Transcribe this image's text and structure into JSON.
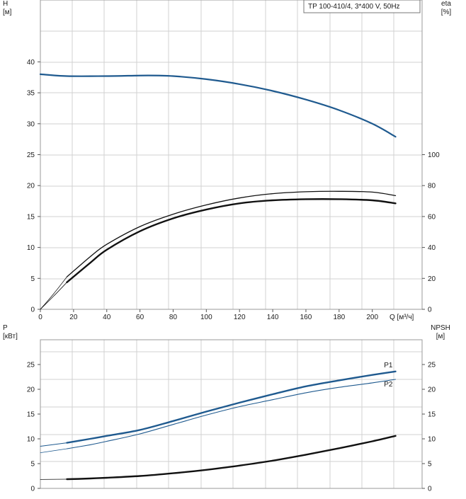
{
  "colors": {
    "blue": "#1f5a8f",
    "black": "#111111",
    "grid": "#d2d2d2"
  },
  "chart_data": [
    {
      "type": "line",
      "title": "TP 100-410/4, 3*400 V, 50Hz",
      "xlabel": "Q [м³/ч]",
      "xlim": [
        0,
        230
      ],
      "xticks": [
        0,
        20,
        40,
        60,
        80,
        100,
        120,
        140,
        160,
        180,
        200
      ],
      "ylabel": "H",
      "ylabel_unit": "[м]",
      "ylim": [
        0,
        50
      ],
      "yticks": [
        0,
        5,
        10,
        15,
        20,
        25,
        30,
        35,
        40
      ],
      "y2label": "eta",
      "y2label_unit": "[%]",
      "y2lim": [
        0,
        200
      ],
      "y2ticks": [
        0,
        20,
        40,
        60,
        80,
        100
      ],
      "grid": true,
      "series": [
        {
          "axis": "left",
          "color": "#1f5a8f",
          "width": 2.2,
          "x": [
            0,
            16,
            40,
            65,
            80,
            100,
            120,
            140,
            160,
            180,
            200,
            214
          ],
          "y": [
            38,
            37.7,
            37.7,
            37.8,
            37.7,
            37.2,
            36.4,
            35.3,
            33.9,
            32.2,
            30.0,
            27.9
          ]
        },
        {
          "axis": "left",
          "color": "#1f5a8f",
          "width": 1.0,
          "x": [
            0,
            16
          ],
          "y": [
            38,
            37.7
          ]
        },
        {
          "axis": "right",
          "color": "#111111",
          "width": 1.3,
          "x": [
            16,
            30,
            40,
            60,
            80,
            100,
            120,
            140,
            160,
            180,
            200,
            214
          ],
          "y": [
            21,
            34,
            42,
            53.5,
            61.5,
            67.5,
            72,
            74.8,
            76,
            76.3,
            75.8,
            73.5
          ]
        },
        {
          "axis": "right",
          "color": "#111111",
          "width": 0.8,
          "x": [
            0,
            8,
            16
          ],
          "y": [
            0,
            10,
            21
          ]
        },
        {
          "axis": "right",
          "color": "#111111",
          "width": 2.4,
          "x": [
            16,
            30,
            40,
            60,
            80,
            100,
            120,
            140,
            160,
            180,
            200,
            214
          ],
          "y": [
            17.5,
            30,
            38.5,
            50.5,
            58.8,
            64.5,
            68.5,
            70.5,
            71.2,
            71.2,
            70.5,
            68.5
          ]
        },
        {
          "axis": "right",
          "color": "#111111",
          "width": 0.8,
          "x": [
            0,
            8,
            16
          ],
          "y": [
            0,
            8.5,
            17.5
          ]
        }
      ]
    },
    {
      "type": "line",
      "xlim": [
        0,
        230
      ],
      "xticks": [],
      "ylabel": "P",
      "ylabel_unit": "[кВт]",
      "ylim": [
        0,
        30
      ],
      "yticks": [
        0,
        5,
        10,
        15,
        20,
        25
      ],
      "y2label": "NPSH",
      "y2label_unit": "[м]",
      "y2lim": [
        0,
        30
      ],
      "y2ticks": [
        0,
        5,
        10,
        15,
        20,
        25
      ],
      "grid": true,
      "series": [
        {
          "name": "P1",
          "axis": "left",
          "color": "#1f5a8f",
          "width": 2.4,
          "x": [
            16,
            30,
            40,
            60,
            80,
            100,
            120,
            140,
            160,
            180,
            200,
            214
          ],
          "y": [
            9.2,
            10.0,
            10.6,
            11.8,
            13.6,
            15.5,
            17.3,
            19.0,
            20.6,
            21.8,
            22.9,
            23.6
          ]
        },
        {
          "axis": "left",
          "color": "#1f5a8f",
          "width": 1.0,
          "x": [
            0,
            16
          ],
          "y": [
            8.5,
            9.2
          ]
        },
        {
          "name": "P2",
          "axis": "left",
          "color": "#1f5a8f",
          "width": 1.1,
          "x": [
            16,
            30,
            40,
            60,
            80,
            100,
            120,
            140,
            160,
            180,
            200,
            214
          ],
          "y": [
            8.0,
            8.8,
            9.5,
            11.0,
            12.9,
            14.8,
            16.5,
            17.9,
            19.3,
            20.4,
            21.3,
            22.0
          ]
        },
        {
          "axis": "left",
          "color": "#1f5a8f",
          "width": 0.8,
          "x": [
            0,
            16
          ],
          "y": [
            7.2,
            8.0
          ]
        },
        {
          "axis": "right",
          "color": "#111111",
          "width": 2.4,
          "x": [
            16,
            30,
            40,
            60,
            80,
            100,
            120,
            140,
            160,
            180,
            200,
            214
          ],
          "y": [
            1.85,
            2.0,
            2.15,
            2.5,
            3.05,
            3.75,
            4.6,
            5.6,
            6.8,
            8.1,
            9.5,
            10.6
          ]
        },
        {
          "axis": "right",
          "color": "#111111",
          "width": 0.8,
          "x": [
            0,
            16
          ],
          "y": [
            1.8,
            1.85
          ]
        }
      ]
    }
  ]
}
